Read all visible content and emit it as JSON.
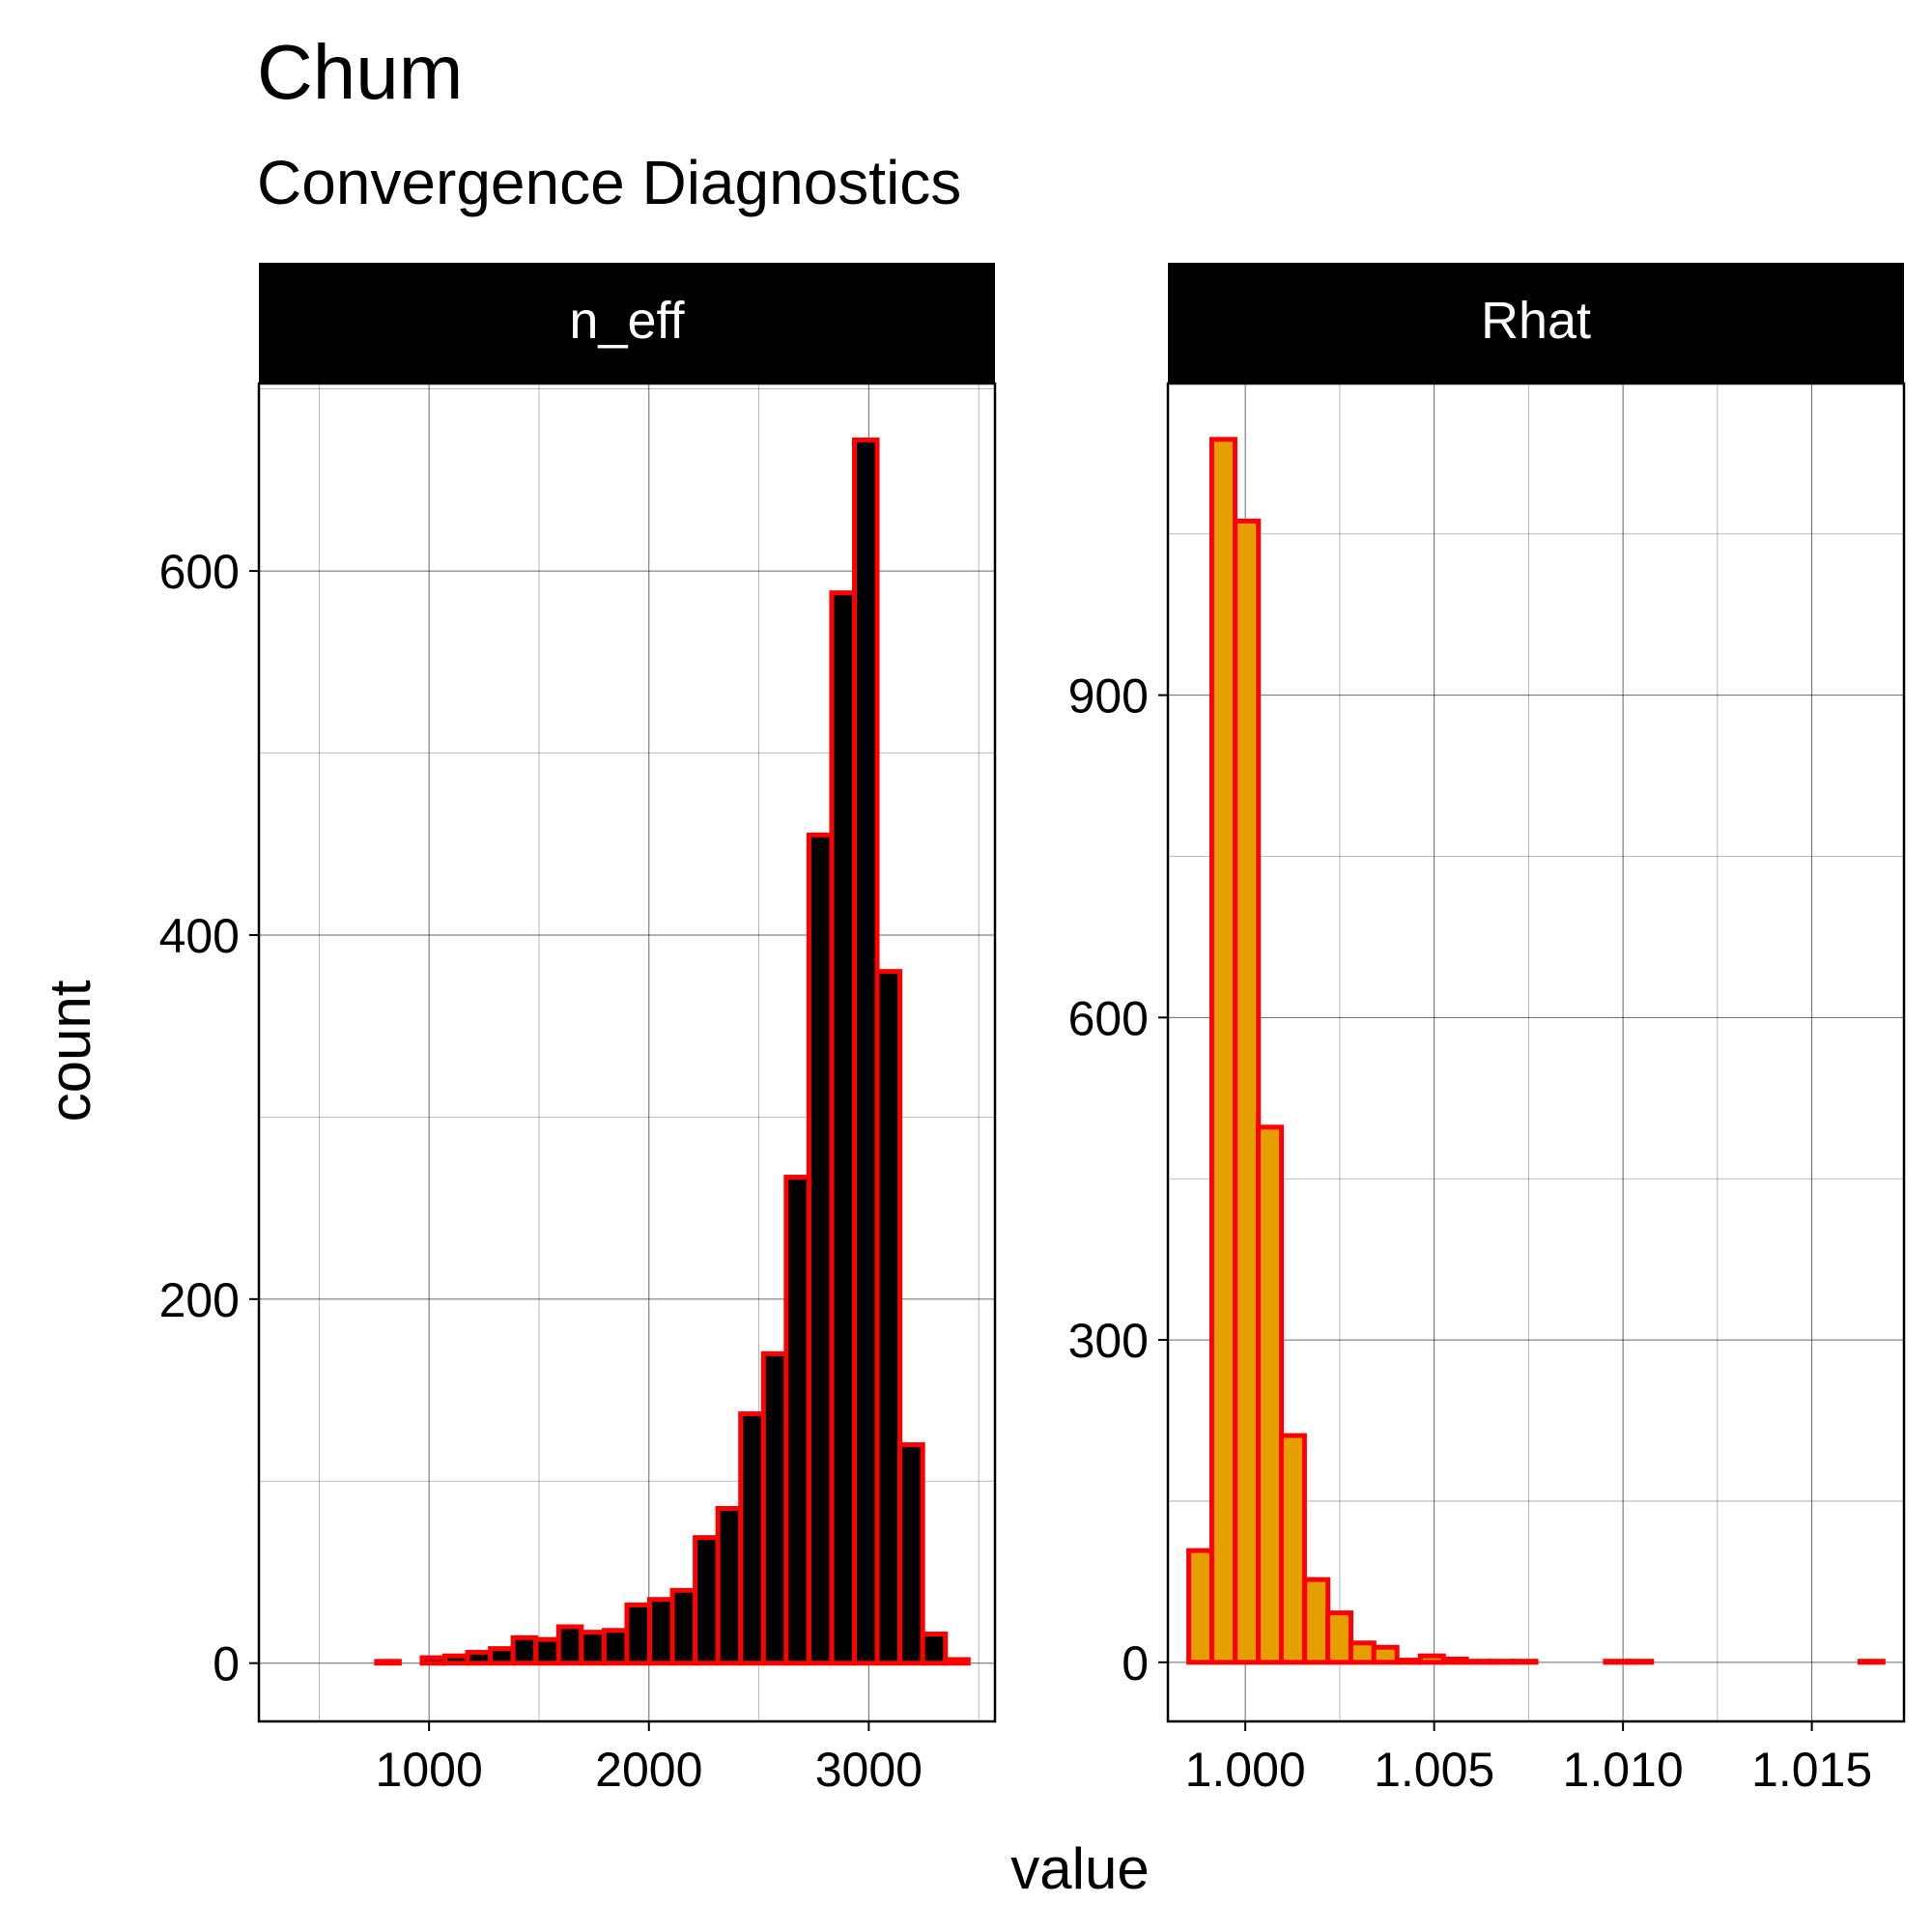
{
  "chart_data": {
    "type": "bar",
    "title": "Chum",
    "subtitle": "Convergence Diagnostics",
    "xlabel": "value",
    "ylabel": "count",
    "grid": true,
    "bar_outline_color": "#ff0000",
    "panels": [
      {
        "name": "n_eff",
        "fill_color": "#000000",
        "bin_width": 103.5,
        "bin_centers": [
          399,
          502.5,
          606,
          709.5,
          813,
          916.5,
          1020,
          1123.5,
          1227,
          1330.5,
          1434,
          1537.5,
          1641,
          1744.5,
          1848,
          1951.5,
          2055,
          2158.5,
          2262,
          2365.5,
          2469,
          2572.5,
          2676,
          2779.5,
          2883,
          2986.5,
          3090,
          3193.5,
          3297,
          3400.5
        ],
        "counts": [
          0,
          0,
          0,
          0,
          1,
          0,
          3,
          4,
          6,
          8,
          14,
          13,
          20,
          17,
          18,
          32,
          35,
          40,
          69,
          85,
          137,
          170,
          267,
          455,
          588,
          672,
          380,
          120,
          16,
          2
        ],
        "xlim": [
          226,
          3574
        ],
        "ylim": [
          -32,
          703
        ],
        "x_ticks": [
          1000,
          2000,
          3000
        ],
        "x_minor_ticks": [
          500,
          1500,
          2500,
          3500
        ],
        "y_ticks": [
          0,
          200,
          400,
          600
        ],
        "y_minor_ticks": [
          100,
          300,
          500,
          700
        ]
      },
      {
        "name": "Rhat",
        "fill_color": "#e69f00",
        "bin_width": 0.000613,
        "bin_centers": [
          0.99881,
          0.99942,
          1.00004,
          1.00065,
          1.00126,
          1.00188,
          1.00249,
          1.0031,
          1.00371,
          1.00433,
          1.00494,
          1.00555,
          1.00617,
          1.00678,
          1.00739,
          1.008,
          1.00862,
          1.00923,
          1.00984,
          1.01045,
          1.01107,
          1.01168,
          1.01229,
          1.01291,
          1.01352,
          1.01413,
          1.01474,
          1.01536,
          1.01597,
          1.01658
        ],
        "counts": [
          104,
          1138,
          1062,
          498,
          211,
          77,
          46,
          18,
          14,
          2,
          6,
          3,
          1,
          1,
          1,
          0,
          0,
          0,
          1,
          1,
          0,
          0,
          0,
          0,
          0,
          0,
          0,
          0,
          0,
          1
        ],
        "xlim": [
          0.99795,
          1.01744
        ],
        "ylim": [
          -55,
          1190
        ],
        "x_ticks": [
          "1.000",
          "1.005",
          "1.010",
          "1.015"
        ],
        "x_minor_ticks": [
          1.0025,
          1.0075,
          1.0125
        ],
        "y_ticks": [
          0,
          300,
          600,
          900
        ],
        "y_minor_ticks": [
          150,
          450,
          750,
          1050
        ]
      }
    ]
  }
}
